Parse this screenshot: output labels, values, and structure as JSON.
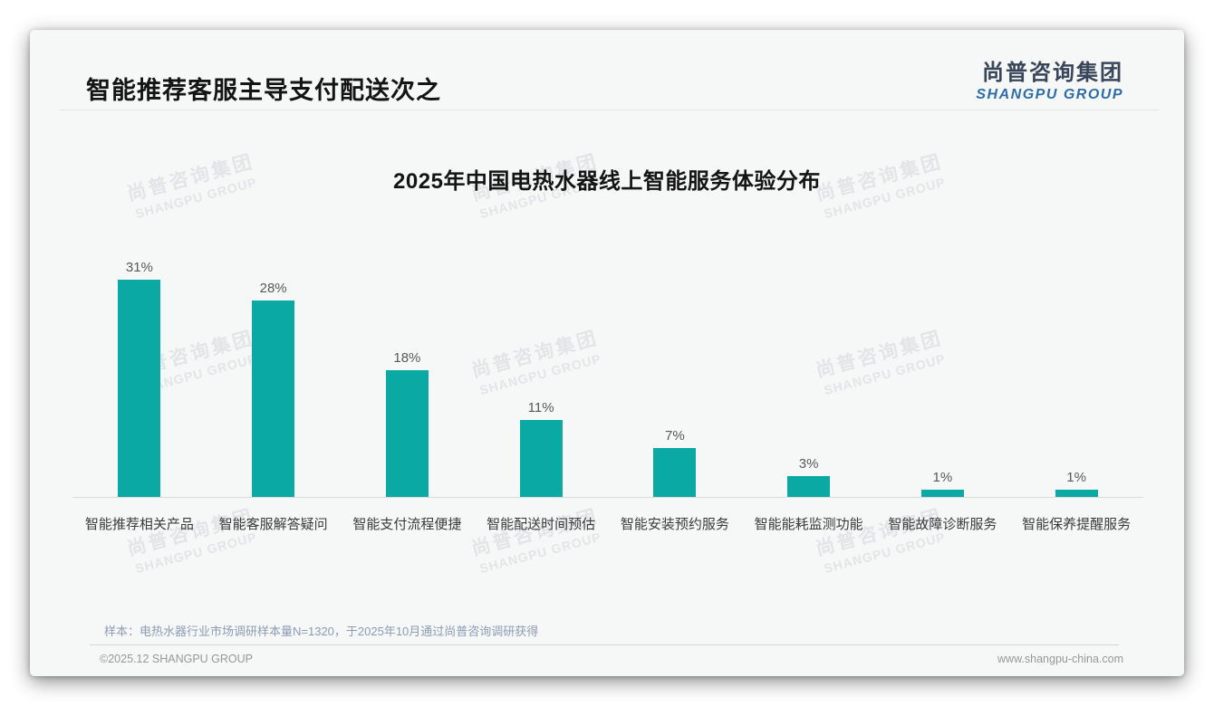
{
  "header": {
    "title": "智能推荐客服主导支付配送次之",
    "logo_cn": "尚普咨询集团",
    "logo_en": "SHANGPU GROUP"
  },
  "watermark": {
    "line1": "尚普咨询集团",
    "line2": "SHANGPU GROUP"
  },
  "chart_data": {
    "type": "bar",
    "title": "2025年中国电热水器线上智能服务体验分布",
    "categories": [
      "智能推荐相关产品",
      "智能客服解答疑问",
      "智能支付流程便捷",
      "智能配送时间预估",
      "智能安装预约服务",
      "智能能耗监测功能",
      "智能故障诊断服务",
      "智能保养提醒服务"
    ],
    "values": [
      31,
      28,
      18,
      11,
      7,
      3,
      1,
      1
    ],
    "value_labels": [
      "31%",
      "28%",
      "18%",
      "11%",
      "7%",
      "3%",
      "1%",
      "1%"
    ],
    "unit": "%",
    "xlabel": "",
    "ylabel": "",
    "ylim": [
      0,
      34
    ],
    "grid": false,
    "legend": false,
    "bar_color": "#0ba9a3",
    "axis_line_color": "#d9dadb"
  },
  "footer": {
    "note": "样本：电热水器行业市场调研样本量N=1320，于2025年10月通过尚普咨询调研获得",
    "copyright": "©2025.12 SHANGPU GROUP",
    "website": "www.shangpu-china.com"
  }
}
